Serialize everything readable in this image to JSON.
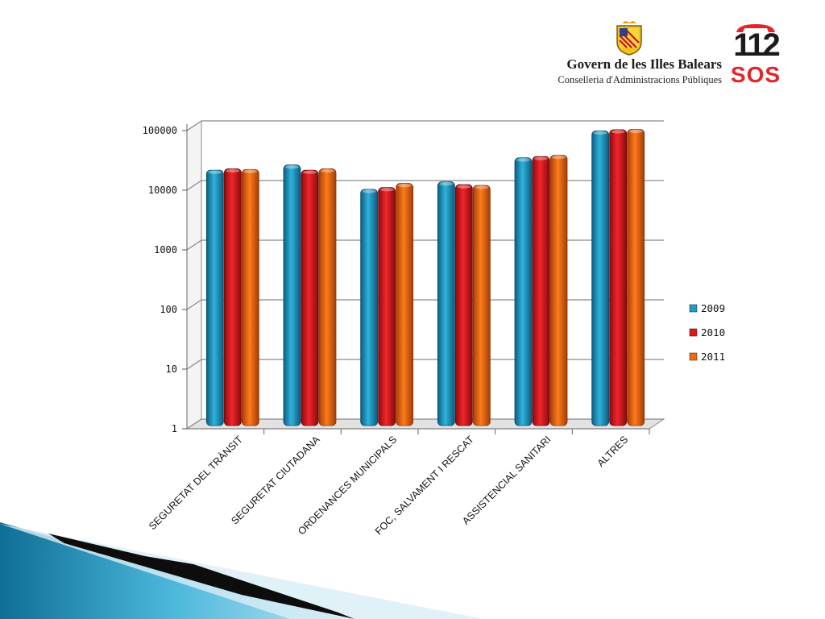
{
  "header": {
    "org_title": "Govern de les Illes Balears",
    "org_subtitle": "Conselleria d'Administracions Públiques",
    "logo_number": "112",
    "logo_text": "SOS"
  },
  "chart_data": {
    "type": "bar",
    "scale": "log",
    "ylim": [
      1,
      100000
    ],
    "yticks": [
      "100000",
      "10000",
      "1000",
      "100",
      "10",
      "1"
    ],
    "categories": [
      "SEGURETAT DEL TRÀNSIT",
      "SEGURETAT CIUTADANA",
      "ORDENANCES MUNICIPALS",
      "FOC, SALVAMENT I RESCAT",
      "ASSISTENCIAL SANITARI",
      "ALTRES"
    ],
    "series": [
      {
        "name": "2009",
        "color": "#1e9fc9",
        "values": [
          18000,
          22000,
          8600,
          11500,
          29000,
          82000
        ]
      },
      {
        "name": "2010",
        "color": "#e0151b",
        "values": [
          19000,
          18000,
          9200,
          10300,
          30500,
          86000
        ]
      },
      {
        "name": "2011",
        "color": "#f26a10",
        "values": [
          18500,
          19000,
          10800,
          10000,
          32000,
          87000
        ]
      }
    ],
    "legend_position": "right",
    "grid": true
  }
}
